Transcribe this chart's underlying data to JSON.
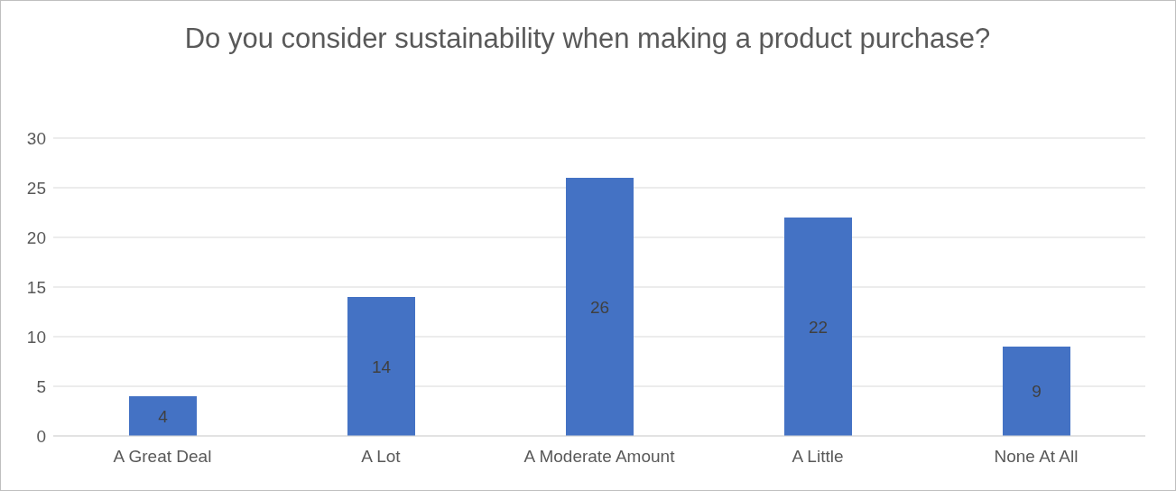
{
  "chart_data": {
    "type": "bar",
    "title": "Do you consider sustainability when making a product purchase?",
    "categories": [
      "A Great Deal",
      "A Lot",
      "A Moderate Amount",
      "A Little",
      "None At All"
    ],
    "values": [
      4,
      14,
      26,
      22,
      9
    ],
    "color": "#4472c4",
    "ylim": [
      0,
      30
    ],
    "yticks": [
      0,
      5,
      10,
      15,
      20,
      25,
      30
    ],
    "grid": "y",
    "data_labels": true
  }
}
